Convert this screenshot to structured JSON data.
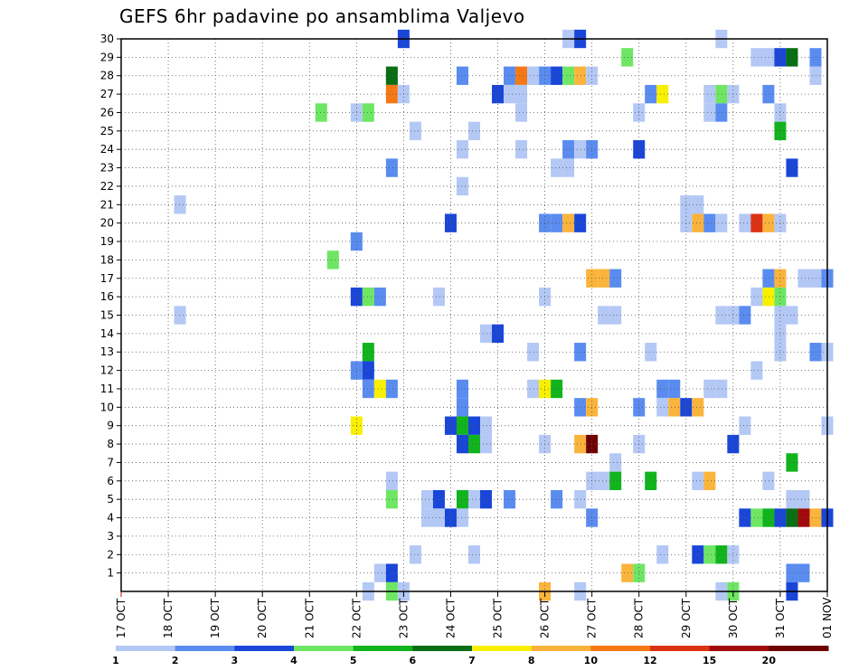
{
  "chart_data": {
    "type": "heatmap",
    "title": "GEFS 6hr padavine po ansamblima Valjevo",
    "xlabel": "",
    "ylabel": "",
    "x_ticks": [
      "17 OCT",
      "18 OCT",
      "19 OCT",
      "20 OCT",
      "21 OCT",
      "22 OCT",
      "23 OCT",
      "24 OCT",
      "25 OCT",
      "26 OCT",
      "27 OCT",
      "28 OCT",
      "29 OCT",
      "30 OCT",
      "31 OCT",
      "01 NOV"
    ],
    "y_ticks": [
      1,
      2,
      3,
      4,
      5,
      6,
      7,
      8,
      9,
      10,
      11,
      12,
      13,
      14,
      15,
      16,
      17,
      18,
      19,
      20,
      21,
      22,
      23,
      24,
      25,
      26,
      27,
      28,
      29,
      30
    ],
    "xlim": [
      0,
      60
    ],
    "ylim": [
      0,
      30
    ],
    "grid": true,
    "x_unit": "6-hour step from 17 OCT 00Z",
    "colorbar": {
      "labels": [
        "1",
        "2",
        "3",
        "4",
        "5",
        "6",
        "7",
        "8",
        "10",
        "12",
        "15",
        "20"
      ],
      "colors": [
        "#b4c8f5",
        "#5a8cf0",
        "#1a46d8",
        "#6ee664",
        "#12b41e",
        "#0a6e14",
        "#f8f000",
        "#fab43c",
        "#f57814",
        "#dc3214",
        "#a00a0a",
        "#6e0000"
      ]
    },
    "cells": [
      [
        24,
        30,
        3
      ],
      [
        38,
        30,
        1
      ],
      [
        39,
        30,
        3
      ],
      [
        51,
        30,
        1
      ],
      [
        43,
        29,
        4
      ],
      [
        54,
        29,
        1
      ],
      [
        55,
        29,
        1
      ],
      [
        56,
        29,
        3
      ],
      [
        57,
        29,
        6
      ],
      [
        59,
        29,
        2
      ],
      [
        23,
        28,
        6
      ],
      [
        29,
        28,
        2
      ],
      [
        33,
        28,
        2
      ],
      [
        34,
        28,
        10
      ],
      [
        35,
        28,
        1
      ],
      [
        36,
        28,
        2
      ],
      [
        37,
        28,
        3
      ],
      [
        38,
        28,
        4
      ],
      [
        39,
        28,
        8
      ],
      [
        40,
        28,
        1
      ],
      [
        59,
        28,
        1
      ],
      [
        23,
        27,
        10
      ],
      [
        24,
        27,
        1
      ],
      [
        32,
        27,
        3
      ],
      [
        33,
        27,
        1
      ],
      [
        34,
        27,
        1
      ],
      [
        45,
        27,
        2
      ],
      [
        46,
        27,
        7
      ],
      [
        50,
        27,
        1
      ],
      [
        51,
        27,
        4
      ],
      [
        52,
        27,
        1
      ],
      [
        55,
        27,
        2
      ],
      [
        17,
        26,
        4
      ],
      [
        20,
        26,
        1
      ],
      [
        21,
        26,
        4
      ],
      [
        34,
        26,
        1
      ],
      [
        44,
        26,
        1
      ],
      [
        50,
        26,
        1
      ],
      [
        51,
        26,
        2
      ],
      [
        56,
        26,
        1
      ],
      [
        25,
        25,
        1
      ],
      [
        30,
        25,
        1
      ],
      [
        56,
        25,
        5
      ],
      [
        29,
        24,
        1
      ],
      [
        34,
        24,
        1
      ],
      [
        38,
        24,
        2
      ],
      [
        39,
        24,
        1
      ],
      [
        40,
        24,
        2
      ],
      [
        44,
        24,
        3
      ],
      [
        23,
        23,
        2
      ],
      [
        37,
        23,
        1
      ],
      [
        38,
        23,
        1
      ],
      [
        57,
        23,
        3
      ],
      [
        29,
        22,
        1
      ],
      [
        5,
        21,
        1
      ],
      [
        48,
        21,
        1
      ],
      [
        49,
        21,
        1
      ],
      [
        28,
        20,
        3
      ],
      [
        36,
        20,
        2
      ],
      [
        37,
        20,
        2
      ],
      [
        38,
        20,
        9
      ],
      [
        39,
        20,
        3
      ],
      [
        48,
        20,
        1
      ],
      [
        49,
        20,
        9
      ],
      [
        50,
        20,
        2
      ],
      [
        51,
        20,
        1
      ],
      [
        53,
        20,
        1
      ],
      [
        54,
        20,
        12
      ],
      [
        55,
        20,
        8
      ],
      [
        56,
        20,
        1
      ],
      [
        20,
        19,
        2
      ],
      [
        18,
        18,
        4
      ],
      [
        40,
        17,
        8
      ],
      [
        41,
        17,
        9
      ],
      [
        42,
        17,
        2
      ],
      [
        55,
        17,
        2
      ],
      [
        56,
        17,
        9
      ],
      [
        58,
        17,
        1
      ],
      [
        59,
        17,
        1
      ],
      [
        60,
        17,
        2
      ],
      [
        20,
        16,
        3
      ],
      [
        21,
        16,
        4
      ],
      [
        22,
        16,
        2
      ],
      [
        27,
        16,
        1
      ],
      [
        36,
        16,
        1
      ],
      [
        54,
        16,
        1
      ],
      [
        55,
        16,
        7
      ],
      [
        56,
        16,
        4
      ],
      [
        5,
        15,
        1
      ],
      [
        41,
        15,
        1
      ],
      [
        42,
        15,
        1
      ],
      [
        51,
        15,
        1
      ],
      [
        52,
        15,
        1
      ],
      [
        53,
        15,
        2
      ],
      [
        56,
        15,
        1
      ],
      [
        57,
        15,
        1
      ],
      [
        31,
        14,
        1
      ],
      [
        32,
        14,
        3
      ],
      [
        56,
        14,
        1
      ],
      [
        21,
        13,
        5
      ],
      [
        35,
        13,
        1
      ],
      [
        39,
        13,
        2
      ],
      [
        45,
        13,
        1
      ],
      [
        56,
        13,
        1
      ],
      [
        59,
        13,
        2
      ],
      [
        60,
        13,
        1
      ],
      [
        20,
        12,
        2
      ],
      [
        21,
        12,
        3
      ],
      [
        54,
        12,
        1
      ],
      [
        21,
        11,
        2
      ],
      [
        22,
        11,
        7
      ],
      [
        23,
        11,
        2
      ],
      [
        29,
        11,
        2
      ],
      [
        35,
        11,
        1
      ],
      [
        36,
        11,
        7
      ],
      [
        37,
        11,
        5
      ],
      [
        46,
        11,
        2
      ],
      [
        47,
        11,
        2
      ],
      [
        50,
        11,
        1
      ],
      [
        51,
        11,
        1
      ],
      [
        29,
        10,
        2
      ],
      [
        39,
        10,
        2
      ],
      [
        40,
        10,
        8
      ],
      [
        44,
        10,
        2
      ],
      [
        46,
        10,
        1
      ],
      [
        47,
        10,
        8
      ],
      [
        48,
        10,
        3
      ],
      [
        49,
        10,
        8
      ],
      [
        20,
        9,
        7
      ],
      [
        28,
        9,
        3
      ],
      [
        29,
        9,
        5
      ],
      [
        30,
        9,
        3
      ],
      [
        31,
        9,
        1
      ],
      [
        53,
        9,
        1
      ],
      [
        60,
        9,
        1
      ],
      [
        29,
        8,
        3
      ],
      [
        30,
        8,
        5
      ],
      [
        31,
        8,
        1
      ],
      [
        36,
        8,
        1
      ],
      [
        39,
        8,
        9
      ],
      [
        40,
        8,
        20
      ],
      [
        44,
        8,
        1
      ],
      [
        52,
        8,
        3
      ],
      [
        42,
        7,
        1
      ],
      [
        57,
        7,
        5
      ],
      [
        23,
        6,
        1
      ],
      [
        40,
        6,
        1
      ],
      [
        41,
        6,
        1
      ],
      [
        42,
        6,
        5
      ],
      [
        45,
        6,
        5
      ],
      [
        49,
        6,
        1
      ],
      [
        50,
        6,
        9
      ],
      [
        55,
        6,
        1
      ],
      [
        23,
        5,
        4
      ],
      [
        26,
        5,
        1
      ],
      [
        27,
        5,
        3
      ],
      [
        29,
        5,
        5
      ],
      [
        30,
        5,
        1
      ],
      [
        31,
        5,
        3
      ],
      [
        33,
        5,
        2
      ],
      [
        37,
        5,
        2
      ],
      [
        39,
        5,
        1
      ],
      [
        57,
        5,
        1
      ],
      [
        58,
        5,
        1
      ],
      [
        26,
        4,
        1
      ],
      [
        27,
        4,
        1
      ],
      [
        28,
        4,
        3
      ],
      [
        29,
        4,
        1
      ],
      [
        40,
        4,
        2
      ],
      [
        53,
        4,
        3
      ],
      [
        54,
        4,
        4
      ],
      [
        55,
        4,
        5
      ],
      [
        56,
        4,
        3
      ],
      [
        57,
        4,
        6
      ],
      [
        58,
        4,
        15
      ],
      [
        59,
        4,
        9
      ],
      [
        60,
        4,
        3
      ],
      [
        25,
        2,
        1
      ],
      [
        30,
        2,
        1
      ],
      [
        46,
        2,
        1
      ],
      [
        49,
        2,
        3
      ],
      [
        50,
        2,
        4
      ],
      [
        51,
        2,
        5
      ],
      [
        52,
        2,
        1
      ],
      [
        22,
        1,
        1
      ],
      [
        23,
        1,
        3
      ],
      [
        43,
        1,
        8
      ],
      [
        44,
        1,
        4
      ],
      [
        57,
        1,
        2
      ],
      [
        58,
        1,
        2
      ],
      [
        21,
        0,
        1
      ],
      [
        23,
        0,
        4
      ],
      [
        24,
        0,
        1
      ],
      [
        36,
        0,
        8
      ],
      [
        39,
        0,
        1
      ],
      [
        51,
        0,
        1
      ],
      [
        52,
        0,
        4
      ],
      [
        57,
        0,
        3
      ]
    ]
  }
}
